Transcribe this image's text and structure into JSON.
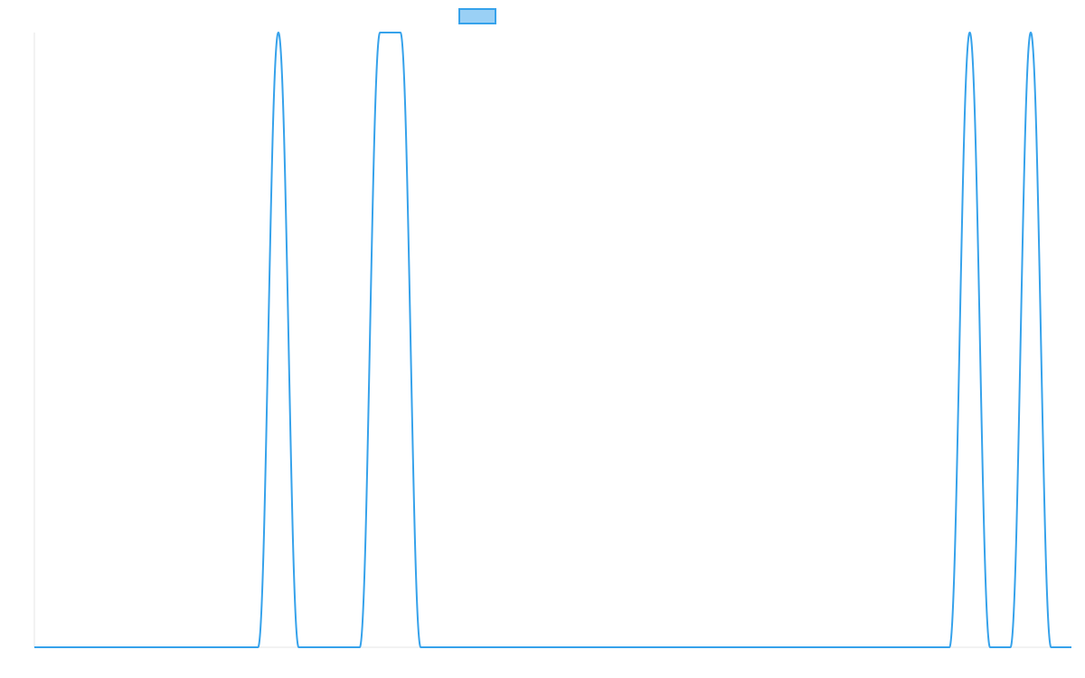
{
  "chart_data": {
    "type": "line",
    "title": "",
    "xlabel": "",
    "ylabel": "",
    "x": [
      0,
      1,
      2,
      3,
      4,
      5,
      6,
      7,
      8,
      9,
      10,
      11,
      12,
      13,
      14,
      15,
      16,
      17,
      18,
      19,
      20,
      21,
      22,
      23,
      24,
      25,
      26,
      27,
      28,
      29,
      30,
      31,
      32,
      33,
      34,
      35,
      36,
      37,
      38,
      39,
      40,
      41,
      42,
      43,
      44,
      45,
      46,
      47,
      48,
      49,
      50,
      51
    ],
    "ylim": [
      0,
      1
    ],
    "grid": false,
    "legend": "top",
    "series": [
      {
        "name": "",
        "color": "#36a2eb",
        "fill": "#9ad0f5",
        "values": [
          0,
          0,
          0,
          0,
          0,
          0,
          0,
          0,
          0,
          0,
          0,
          0,
          1,
          0,
          0,
          0,
          0,
          1,
          1,
          0,
          0,
          0,
          0,
          0,
          0,
          0,
          0,
          0,
          0,
          0,
          0,
          0,
          0,
          0,
          0,
          0,
          0,
          0,
          0,
          0,
          0,
          0,
          0,
          0,
          0,
          0,
          1,
          0,
          0,
          1,
          0,
          0
        ]
      }
    ]
  }
}
